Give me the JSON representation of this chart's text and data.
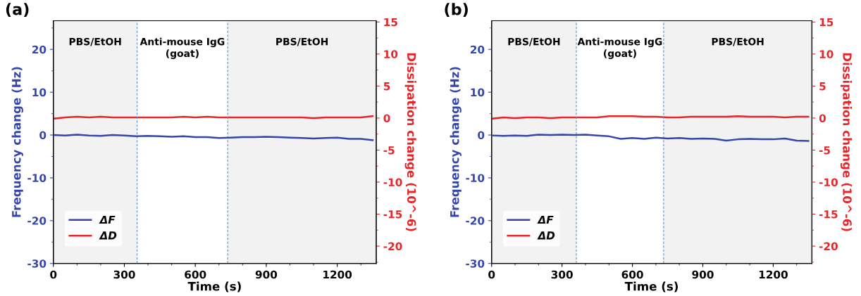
{
  "chart_data": [
    {
      "type": "line",
      "title": "(a)",
      "xlabel": "Time (s)",
      "ylabel": "Frequency change (Hz)",
      "y2label": "Dissipation change (10^-6)",
      "xlim": [
        0,
        1365
      ],
      "xticks": [
        0,
        300,
        600,
        900,
        1200
      ],
      "ylim": [
        -30,
        26.7
      ],
      "yticks": [
        -30,
        -20,
        -10,
        0,
        10,
        20
      ],
      "y2lim": [
        -22.7,
        15.2
      ],
      "y2ticks": [
        -20,
        -15,
        -10,
        -5,
        0,
        5,
        10,
        15
      ],
      "legend": "bottom left",
      "grid": false,
      "line_style": "solid",
      "marker": "none",
      "bands": [
        {
          "axis": "x",
          "from": 0,
          "to": 354,
          "label": "PBS/EtOH",
          "color": "#f2f2f2"
        },
        {
          "axis": "x",
          "from": 737,
          "to": 1365,
          "label": "PBS/EtOH",
          "color": "#f2f2f2"
        }
      ],
      "annotations": [
        "Anti-mouse IgG\n(goat)"
      ],
      "ref_lines": [
        {
          "axis": "x",
          "value": 354,
          "label": null,
          "color": "#5b8fc7",
          "line_style": "dashed"
        },
        {
          "axis": "x",
          "value": 737,
          "label": null,
          "color": "#5b8fc7",
          "line_style": "dashed"
        }
      ],
      "x": [
        0,
        50,
        100,
        150,
        200,
        250,
        300,
        350,
        400,
        450,
        500,
        550,
        600,
        650,
        700,
        750,
        800,
        850,
        900,
        950,
        1000,
        1050,
        1100,
        1150,
        1200,
        1250,
        1300,
        1350
      ],
      "series": [
        {
          "name": "ΔF",
          "color": "#3546a8",
          "values": [
            0,
            -0.1,
            0.1,
            -0.1,
            -0.2,
            0,
            -0.1,
            -0.3,
            -0.2,
            -0.3,
            -0.4,
            -0.3,
            -0.5,
            -0.5,
            -0.7,
            -0.6,
            -0.5,
            -0.5,
            -0.4,
            -0.5,
            -0.6,
            -0.7,
            -0.8,
            -0.7,
            -0.6,
            -0.9,
            -0.9,
            -1.2
          ]
        },
        {
          "name": "ΔD",
          "color": "#e8262a",
          "axis": "y2",
          "values": [
            -0.1,
            0.1,
            0.2,
            0.1,
            0.2,
            0.1,
            0.1,
            0.1,
            0.1,
            0.1,
            0.1,
            0.2,
            0.1,
            0.2,
            0.1,
            0.1,
            0.1,
            0.1,
            0.1,
            0.1,
            0.1,
            0.1,
            0,
            0.1,
            0.1,
            0.1,
            0.1,
            0.3
          ]
        }
      ]
    },
    {
      "type": "line",
      "title": "(b)",
      "xlabel": "Time (s)",
      "ylabel": "Frequency change (Hz)",
      "y2label": "Dissipation change (10^-6)",
      "xlim": [
        0,
        1365
      ],
      "xticks": [
        0,
        300,
        600,
        900,
        1200
      ],
      "ylim": [
        -30,
        26.7
      ],
      "yticks": [
        -30,
        -20,
        -10,
        0,
        10,
        20
      ],
      "y2lim": [
        -22.7,
        15.2
      ],
      "y2ticks": [
        -20,
        -15,
        -10,
        -5,
        0,
        5,
        10,
        15
      ],
      "legend": "bottom left",
      "grid": false,
      "line_style": "solid",
      "marker": "none",
      "bands": [
        {
          "axis": "x",
          "from": 0,
          "to": 361,
          "label": "PBS/EtOH",
          "color": "#f2f2f2"
        },
        {
          "axis": "x",
          "from": 733,
          "to": 1365,
          "label": "PBS/EtOH",
          "color": "#f2f2f2"
        }
      ],
      "annotations": [
        "Anti-mouse IgG\n(goat)"
      ],
      "ref_lines": [
        {
          "axis": "x",
          "value": 361,
          "label": null,
          "color": "#5b8fc7",
          "line_style": "dashed"
        },
        {
          "axis": "x",
          "value": 733,
          "label": null,
          "color": "#5b8fc7",
          "line_style": "dashed"
        }
      ],
      "x": [
        0,
        50,
        100,
        150,
        200,
        250,
        300,
        350,
        400,
        450,
        500,
        550,
        600,
        650,
        700,
        750,
        800,
        850,
        900,
        950,
        1000,
        1050,
        1100,
        1150,
        1200,
        1250,
        1300,
        1350
      ],
      "series": [
        {
          "name": "ΔF",
          "color": "#3546a8",
          "values": [
            -0.1,
            -0.2,
            -0.1,
            -0.2,
            0.1,
            0,
            0.1,
            0,
            0.1,
            -0.1,
            -0.3,
            -0.9,
            -0.7,
            -0.9,
            -0.6,
            -0.8,
            -0.7,
            -0.9,
            -0.8,
            -0.9,
            -1.3,
            -1.0,
            -0.9,
            -1.0,
            -1.0,
            -0.8,
            -1.3,
            -1.4
          ]
        },
        {
          "name": "ΔD",
          "color": "#e8262a",
          "axis": "y2",
          "values": [
            -0.1,
            0.1,
            0,
            0.1,
            0.1,
            0,
            0.1,
            0.1,
            0.1,
            0.1,
            0.3,
            0.3,
            0.3,
            0.2,
            0.2,
            0.1,
            0.1,
            0.2,
            0.2,
            0.2,
            0.2,
            0.3,
            0.2,
            0.2,
            0.2,
            0.1,
            0.2,
            0.2
          ]
        }
      ]
    }
  ]
}
